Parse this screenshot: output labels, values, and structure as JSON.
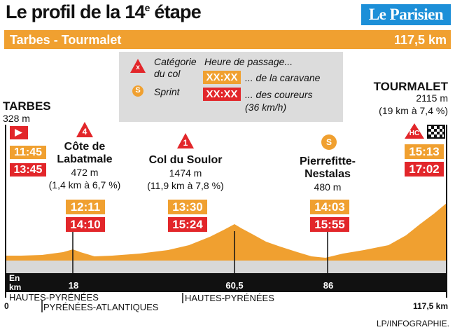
{
  "header": {
    "title_pre": "Le profil de la 14",
    "title_sup": "e",
    "title_post": " étape",
    "brand": "Le Parisien",
    "route": "Tarbes - Tourmalet",
    "distance": "117,5 km"
  },
  "legend": {
    "category_label_1": "Catégorie",
    "category_label_2": "du col",
    "category_icon_text": "x",
    "sprint_label": "Sprint",
    "sprint_icon_text": "S",
    "passage_title": "Heure de passage...",
    "caravan_sample": "XX:XX",
    "caravan_label": "... de la caravane",
    "riders_sample": "XX:XX",
    "riders_label_1": "... des coureurs",
    "riders_label_2": "(36 km/h)"
  },
  "points": {
    "tarbes": {
      "name": "TARBES",
      "alt": "328 m",
      "caravan": "11:45",
      "riders": "13:45"
    },
    "labatmale": {
      "category": "4",
      "name_1": "Côte de",
      "name_2": "Labatmale",
      "alt": "472 m",
      "detail": "(1,4 km à 6,7 %)",
      "caravan": "12:11",
      "riders": "14:10"
    },
    "soulor": {
      "category": "1",
      "name": "Col du Soulor",
      "alt": "1474 m",
      "detail": "(11,9 km à 7,8 %)",
      "caravan": "13:30",
      "riders": "15:24"
    },
    "pierrefitte": {
      "sprint": "S",
      "name_1": "Pierrefitte-",
      "name_2": "Nestalas",
      "alt": "480 m",
      "caravan": "14:03",
      "riders": "15:55"
    },
    "tourmalet": {
      "category": "HC",
      "name": "TOURMALET",
      "alt": "2115 m",
      "detail": "(19 km à 7,4 %)",
      "caravan": "15:13",
      "riders": "17:02"
    }
  },
  "axis": {
    "unit_1": "En",
    "unit_2": "km",
    "ticks": [
      "18",
      "60,5",
      "86"
    ],
    "start": "0",
    "end": "117,5 km"
  },
  "departments": [
    "HAUTES-PYRÉNÉES",
    "PYRÉNÉES-ATLANTIQUES",
    "HAUTES-PYRÉNÉES"
  ],
  "credit": "LP/INFOGRAPHIE.",
  "colors": {
    "orange": "#f0a030",
    "red": "#e2262a",
    "blue": "#1c8fd8",
    "legend_bg": "#dcdcdc"
  }
}
